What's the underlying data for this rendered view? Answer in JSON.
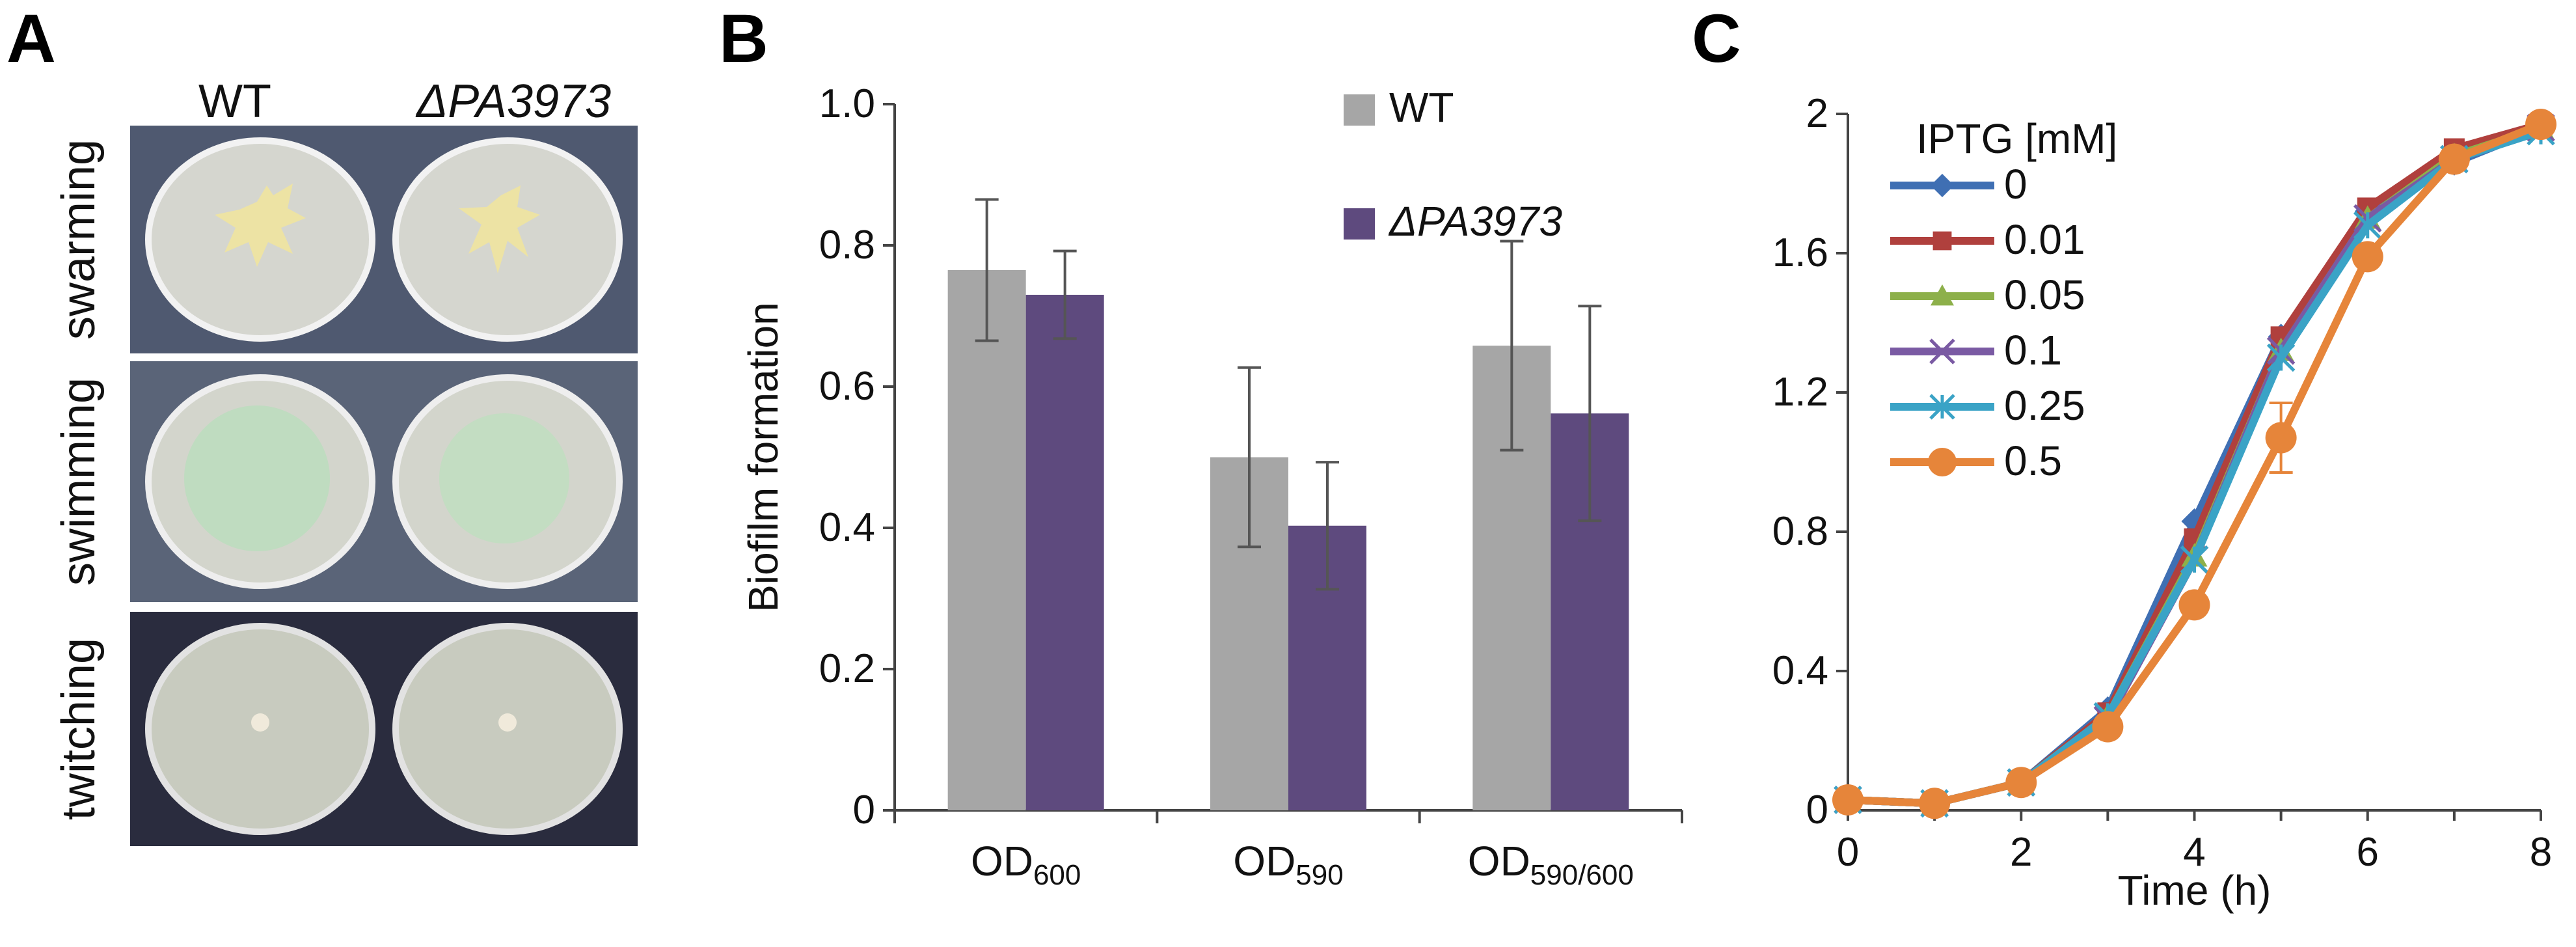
{
  "panels": {
    "a": "A",
    "b": "B",
    "c": "C"
  },
  "photo_panel": {
    "col_labels": {
      "wt": "WT",
      "mutant": "ΔPA3973"
    },
    "row_labels": [
      "swarming",
      "swimming",
      "twitching"
    ]
  },
  "colors": {
    "wt_gray": "#a6a6a6",
    "mutant_purple": "#5e4a7e",
    "ipta_0": "#3f6fb3",
    "ipta_001": "#b0403d",
    "ipta_005": "#8db04a",
    "ipta_01": "#7a5aa3",
    "ipta_025": "#3aa3c6",
    "ipta_05": "#e6853a"
  },
  "chart_data": [
    {
      "type": "bar",
      "title": "",
      "xlabel": "",
      "ylabel": "Biofilm formation",
      "ylim": [
        0,
        1.0
      ],
      "yticks": [
        "0",
        "0.2",
        "0.4",
        "0.6",
        "0.8",
        "1.0"
      ],
      "categories": [
        {
          "base": "OD",
          "sub": "600"
        },
        {
          "base": "OD",
          "sub": "590"
        },
        {
          "base": "OD",
          "sub": "590/600"
        }
      ],
      "series": [
        {
          "name": "WT",
          "values": [
            0.765,
            0.5,
            0.658
          ],
          "errors": [
            0.1,
            0.127,
            0.148
          ]
        },
        {
          "name": "ΔPA3973",
          "values": [
            0.73,
            0.403,
            0.562
          ],
          "errors": [
            0.062,
            0.09,
            0.152
          ]
        }
      ],
      "legend_position": "top-right"
    },
    {
      "type": "line",
      "title": "",
      "xlabel": "Time (h)",
      "ylabel": "",
      "xlim": [
        0,
        8
      ],
      "ylim": [
        0,
        2
      ],
      "xticks": [
        "0",
        "2",
        "4",
        "6",
        "8"
      ],
      "yticks": [
        "0",
        "0.4",
        "0.8",
        "1.2",
        "1.6",
        "2"
      ],
      "legend_title": "IPTG [mM]",
      "x": [
        0,
        1,
        2,
        3,
        4,
        5,
        6,
        7,
        8
      ],
      "series": [
        {
          "name": "0",
          "marker": "diamond",
          "values": [
            0.03,
            0.02,
            0.08,
            0.29,
            0.83,
            1.36,
            1.72,
            1.86,
            1.96
          ]
        },
        {
          "name": "0.01",
          "marker": "square",
          "values": [
            0.03,
            0.02,
            0.08,
            0.28,
            0.78,
            1.36,
            1.73,
            1.9,
            1.97
          ]
        },
        {
          "name": "0.05",
          "marker": "triangle",
          "values": [
            0.03,
            0.02,
            0.08,
            0.27,
            0.73,
            1.32,
            1.7,
            1.88,
            1.96
          ]
        },
        {
          "name": "0.1",
          "marker": "x",
          "values": [
            0.03,
            0.02,
            0.08,
            0.26,
            0.72,
            1.32,
            1.7,
            1.87,
            1.96
          ]
        },
        {
          "name": "0.25",
          "marker": "asterisk",
          "values": [
            0.03,
            0.02,
            0.08,
            0.27,
            0.72,
            1.3,
            1.68,
            1.87,
            1.95
          ]
        },
        {
          "name": "0.5",
          "marker": "circle",
          "values": [
            0.03,
            0.02,
            0.08,
            0.24,
            0.59,
            1.07,
            1.59,
            1.87,
            1.97
          ],
          "errors": [
            0,
            0,
            0,
            0,
            0,
            0.1,
            0,
            0,
            0
          ]
        }
      ],
      "legend_position": "top-left"
    }
  ]
}
